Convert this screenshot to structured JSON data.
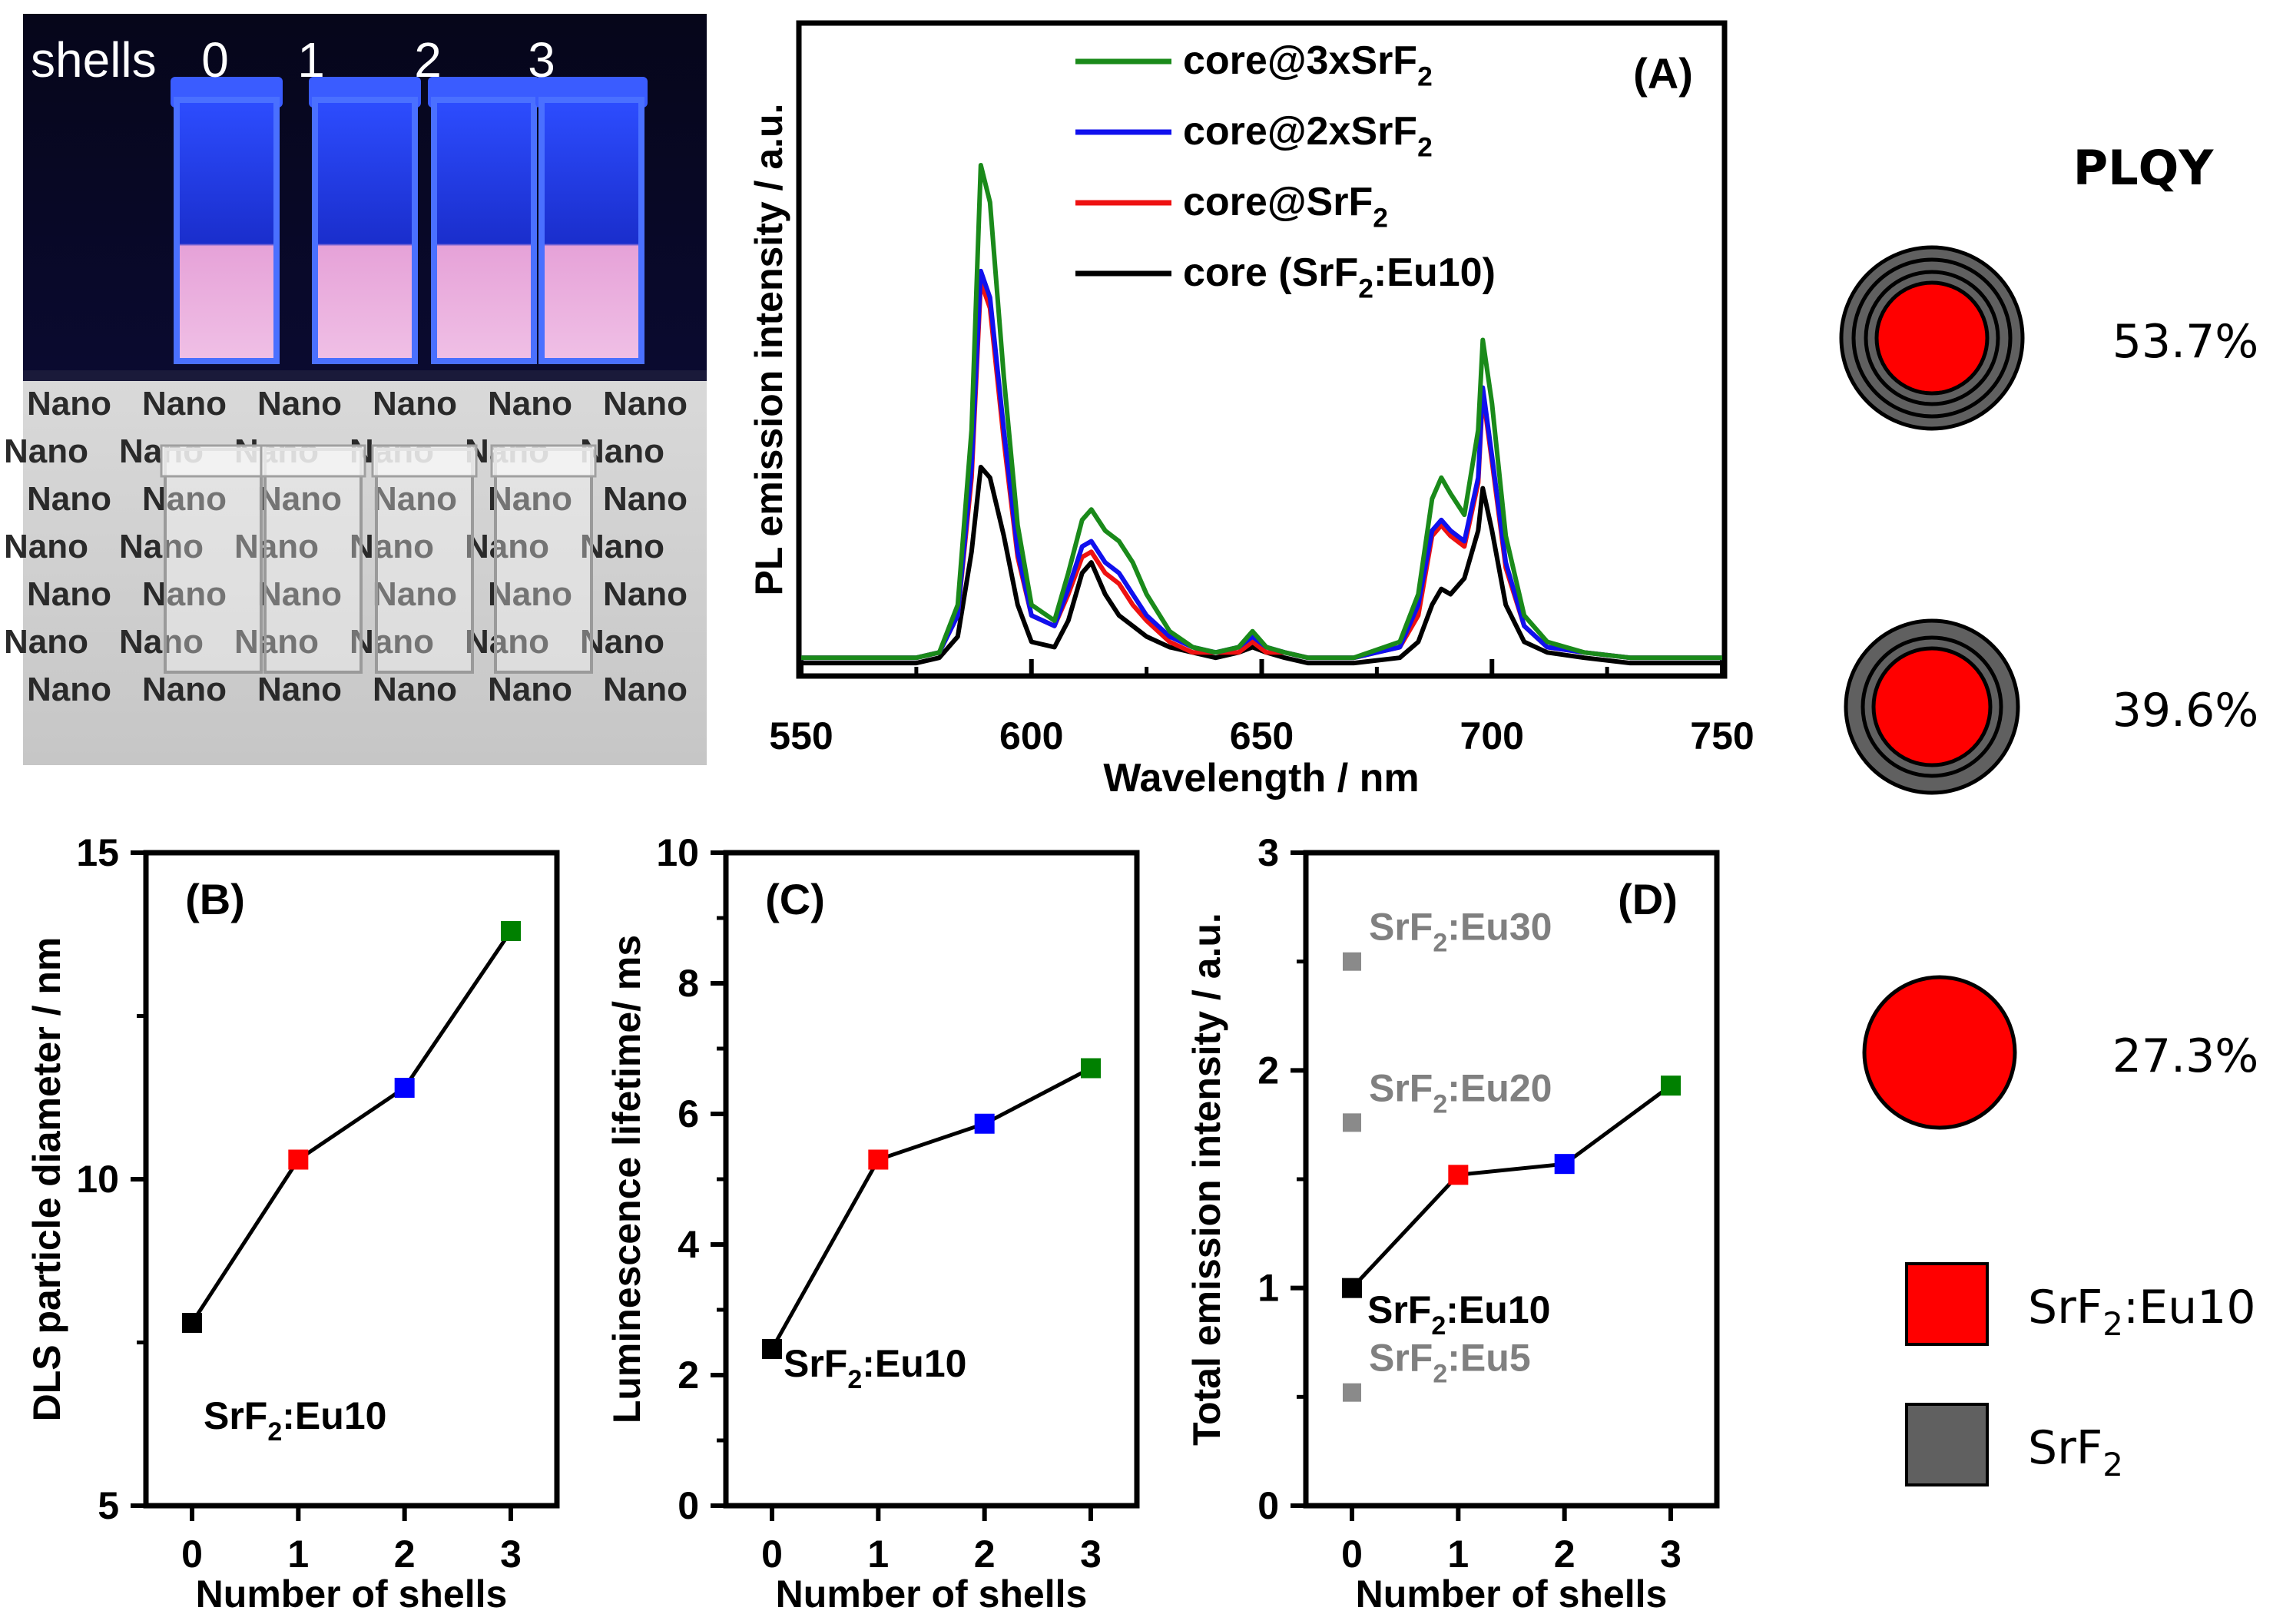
{
  "photo": {
    "top_caption": "shells",
    "shell_labels": [
      "0",
      "1",
      "2",
      "3"
    ],
    "vial_text": "Nano"
  },
  "pl_spectrum": {
    "panel_label": "(A)",
    "xlabel": "Wavelength / nm",
    "ylabel": "PL emission intensity / a.u.",
    "xticks": [
      "550",
      "600",
      "650",
      "700",
      "750"
    ],
    "legend": [
      {
        "name": "core@3xSrF",
        "sub": "2",
        "tail": "",
        "color": "#1a8a1a"
      },
      {
        "name": "core@2xSrF",
        "sub": "2",
        "tail": "",
        "color": "#1010ee"
      },
      {
        "name": "core@SrF",
        "sub": "2",
        "tail": "",
        "color": "#ee1111"
      },
      {
        "name": "core (SrF",
        "sub": "2",
        "tail": ":Eu10)",
        "color": "#000000"
      }
    ]
  },
  "plqy": {
    "title": "PLQY",
    "values": [
      "53.7%",
      "39.6%",
      "27.3%"
    ],
    "legend": [
      {
        "label": "SrF",
        "sub": "2",
        "tail": ":Eu10",
        "color": "#ff0000"
      },
      {
        "label": "SrF",
        "sub": "2",
        "tail": "",
        "color": "#606060"
      }
    ]
  },
  "colors": {
    "core": "#ff0000",
    "shell": "#606060",
    "shell_border": "#000000"
  },
  "chart_data": [
    {
      "id": "A",
      "type": "line",
      "title": "(A)",
      "xlabel": "Wavelength / nm",
      "ylabel": "PL emission intensity / a.u.",
      "xlim": [
        550,
        750
      ],
      "ylim": [
        0,
        1.1
      ],
      "series": [
        {
          "name": "core@3xSrF2",
          "color": "#1a8a1a",
          "x": [
            550,
            575,
            580,
            584,
            587,
            589,
            591,
            594,
            597,
            600,
            605,
            608,
            611,
            613,
            616,
            619,
            622,
            625,
            630,
            635,
            640,
            645,
            648,
            651,
            655,
            660,
            670,
            680,
            684,
            687,
            689,
            691,
            694,
            697,
            698,
            700,
            703,
            707,
            712,
            720,
            730,
            750
          ],
          "y": [
            0.02,
            0.02,
            0.03,
            0.12,
            0.45,
            0.95,
            0.88,
            0.55,
            0.27,
            0.12,
            0.09,
            0.18,
            0.28,
            0.3,
            0.26,
            0.24,
            0.2,
            0.14,
            0.07,
            0.04,
            0.03,
            0.04,
            0.07,
            0.04,
            0.03,
            0.02,
            0.02,
            0.05,
            0.14,
            0.32,
            0.36,
            0.33,
            0.29,
            0.45,
            0.62,
            0.5,
            0.25,
            0.1,
            0.05,
            0.03,
            0.02,
            0.02
          ]
        },
        {
          "name": "core@2xSrF2",
          "color": "#1010ee",
          "x": [
            550,
            575,
            580,
            584,
            587,
            589,
            591,
            594,
            597,
            600,
            605,
            608,
            611,
            613,
            616,
            619,
            622,
            625,
            630,
            635,
            640,
            645,
            648,
            651,
            655,
            660,
            670,
            680,
            684,
            687,
            689,
            691,
            694,
            697,
            698,
            700,
            703,
            707,
            712,
            720,
            730,
            750
          ],
          "y": [
            0.02,
            0.02,
            0.03,
            0.1,
            0.38,
            0.75,
            0.7,
            0.45,
            0.22,
            0.1,
            0.08,
            0.15,
            0.23,
            0.24,
            0.2,
            0.18,
            0.14,
            0.1,
            0.06,
            0.04,
            0.03,
            0.04,
            0.06,
            0.04,
            0.03,
            0.02,
            0.02,
            0.04,
            0.12,
            0.26,
            0.28,
            0.26,
            0.24,
            0.36,
            0.53,
            0.4,
            0.2,
            0.08,
            0.04,
            0.03,
            0.02,
            0.02
          ]
        },
        {
          "name": "core@SrF2",
          "color": "#ee1111",
          "x": [
            550,
            575,
            580,
            584,
            587,
            589,
            591,
            594,
            597,
            600,
            605,
            608,
            611,
            613,
            616,
            619,
            622,
            625,
            630,
            635,
            640,
            645,
            648,
            651,
            655,
            660,
            670,
            680,
            684,
            687,
            689,
            691,
            694,
            697,
            698,
            700,
            703,
            707,
            712,
            720,
            730,
            750
          ],
          "y": [
            0.02,
            0.02,
            0.03,
            0.1,
            0.36,
            0.73,
            0.68,
            0.43,
            0.21,
            0.1,
            0.08,
            0.14,
            0.21,
            0.22,
            0.18,
            0.16,
            0.12,
            0.09,
            0.05,
            0.03,
            0.03,
            0.03,
            0.05,
            0.03,
            0.03,
            0.02,
            0.02,
            0.04,
            0.1,
            0.25,
            0.27,
            0.25,
            0.23,
            0.35,
            0.52,
            0.39,
            0.19,
            0.08,
            0.04,
            0.03,
            0.02,
            0.02
          ]
        },
        {
          "name": "core (SrF2:Eu10)",
          "color": "#000000",
          "x": [
            550,
            575,
            580,
            584,
            587,
            589,
            591,
            594,
            597,
            600,
            605,
            608,
            611,
            613,
            616,
            619,
            622,
            625,
            630,
            635,
            640,
            645,
            648,
            651,
            655,
            660,
            670,
            680,
            684,
            687,
            689,
            691,
            694,
            697,
            698,
            700,
            703,
            707,
            712,
            720,
            730,
            750
          ],
          "y": [
            0.01,
            0.01,
            0.02,
            0.06,
            0.22,
            0.38,
            0.36,
            0.25,
            0.12,
            0.05,
            0.04,
            0.09,
            0.18,
            0.2,
            0.14,
            0.1,
            0.08,
            0.06,
            0.04,
            0.03,
            0.02,
            0.03,
            0.04,
            0.03,
            0.02,
            0.01,
            0.01,
            0.02,
            0.05,
            0.12,
            0.15,
            0.14,
            0.17,
            0.26,
            0.34,
            0.26,
            0.12,
            0.05,
            0.03,
            0.02,
            0.01,
            0.01
          ]
        }
      ]
    },
    {
      "id": "B",
      "type": "line",
      "title": "(B)",
      "xlabel": "Number of shells",
      "ylabel": "DLS particle diameter / nm",
      "xlim": [
        -0.3,
        3.3
      ],
      "ylim": [
        5,
        15
      ],
      "xticks": [
        "0",
        "1",
        "2",
        "3"
      ],
      "yticks": [
        "5",
        "10",
        "15"
      ],
      "x": [
        0,
        1,
        2,
        3
      ],
      "y": [
        7.8,
        10.3,
        11.4,
        13.8
      ],
      "point_colors": [
        "#000000",
        "#ff0000",
        "#0000ff",
        "#008000"
      ],
      "annotations": [
        {
          "text": "SrF",
          "sub": "2",
          "tail": ":Eu10"
        }
      ]
    },
    {
      "id": "C",
      "type": "line",
      "title": "(C)",
      "xlabel": "Number of shells",
      "ylabel": "Luminescence lifetime/ ms",
      "xlim": [
        -0.3,
        3.3
      ],
      "ylim": [
        0,
        10
      ],
      "xticks": [
        "0",
        "1",
        "2",
        "3"
      ],
      "yticks": [
        "0",
        "2",
        "4",
        "6",
        "8",
        "10"
      ],
      "x": [
        0,
        1,
        2,
        3
      ],
      "y": [
        2.4,
        5.3,
        5.85,
        6.7
      ],
      "point_colors": [
        "#000000",
        "#ff0000",
        "#0000ff",
        "#008000"
      ],
      "annotations": [
        {
          "text": "SrF",
          "sub": "2",
          "tail": ":Eu10"
        }
      ]
    },
    {
      "id": "D",
      "type": "scatter",
      "title": "(D)",
      "xlabel": "Number of shells",
      "ylabel": "Total emission intensity / a.u.",
      "xlim": [
        -0.3,
        3.3
      ],
      "ylim": [
        0,
        3
      ],
      "xticks": [
        "0",
        "1",
        "2",
        "3"
      ],
      "yticks": [
        "0",
        "1",
        "2",
        "3"
      ],
      "x": [
        0,
        1,
        2,
        3
      ],
      "y": [
        1.0,
        1.52,
        1.57,
        1.93
      ],
      "point_colors": [
        "#000000",
        "#ff0000",
        "#0000ff",
        "#008000"
      ],
      "reference_points": [
        {
          "x": 0,
          "y": 2.5,
          "text": "SrF",
          "sub": "2",
          "tail": ":Eu30"
        },
        {
          "x": 0,
          "y": 1.76,
          "text": "SrF",
          "sub": "2",
          "tail": ":Eu20"
        },
        {
          "x": 0,
          "y": 0.52,
          "text": "SrF",
          "sub": "2",
          "tail": ":Eu5"
        }
      ],
      "annotations": [
        {
          "text": "SrF",
          "sub": "2",
          "tail": ":Eu10"
        }
      ]
    }
  ]
}
